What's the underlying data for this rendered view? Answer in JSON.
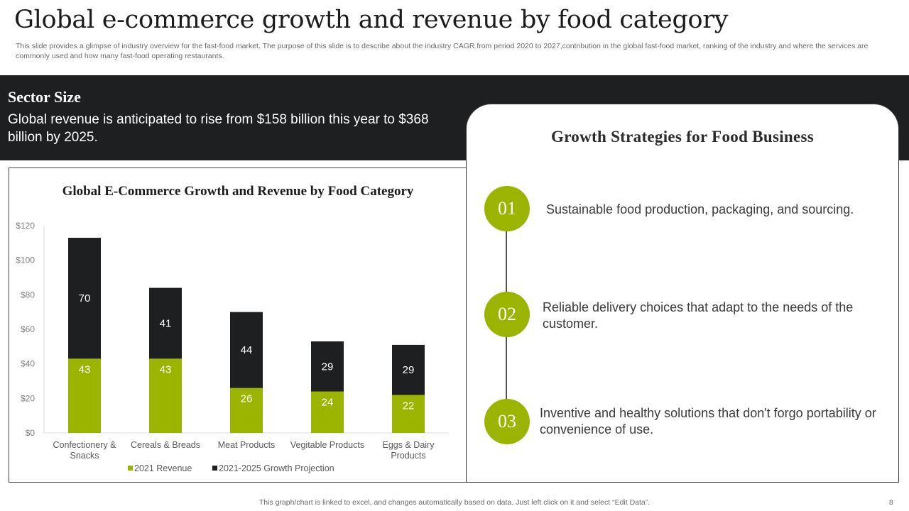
{
  "slide": {
    "title": "Global e-commerce growth and revenue by food category",
    "subtitle": "This slide provides a glimpse of industry overview for the fast-food market. The purpose of this slide is to describe about the industry CAGR from period 2020 to 2027,contribution in the global fast-food market, ranking of the industry and where the services are commonly used and how many fast-food operating restaurants.",
    "footer_note": "This graph/chart is linked to excel,  and changes automatically based on data. Just left click on it and select “Edit Data”.",
    "page_number": "8"
  },
  "sector": {
    "title": "Sector Size",
    "description": "Global revenue is anticipated to rise from $158 billion this year to $368 billion by 2025."
  },
  "strategies": {
    "title": "Growth Strategies for Food Business",
    "items": [
      {
        "number": "01",
        "text": "Sustainable food production, packaging, and sourcing."
      },
      {
        "number": "02",
        "text": "Reliable delivery choices that adapt to the needs of the customer."
      },
      {
        "number": "03",
        "text": "Inventive and healthy solutions that don't forgo portability or convenience of use."
      }
    ]
  },
  "colors": {
    "accent": "#9ab400",
    "dark": "#1e1f21"
  },
  "chart_data": {
    "type": "bar",
    "stacked": true,
    "title": "Global E-Commerce Growth and Revenue by Food Category",
    "categories": [
      [
        "Confectionery &",
        "Snacks"
      ],
      [
        "Cereals & Breads"
      ],
      [
        "Meat Products"
      ],
      [
        "Vegitable Products"
      ],
      [
        "Eggs & Dairy",
        "Products"
      ]
    ],
    "series": [
      {
        "name": "2021 Revenue",
        "color": "#9ab400",
        "label_color": "#ffffff",
        "values": [
          43,
          43,
          26,
          24,
          22
        ]
      },
      {
        "name": "2021-2025 Growth Projection",
        "color": "#1e1f21",
        "label_color": "#ffffff",
        "values": [
          70,
          41,
          44,
          29,
          29
        ]
      }
    ],
    "ylim": [
      0,
      120
    ],
    "yticks": [
      0,
      20,
      40,
      60,
      80,
      100,
      120
    ],
    "ytick_labels": [
      "$0",
      "$20",
      "$40",
      "$60",
      "$80",
      "$100",
      "$120"
    ],
    "xlabel": "",
    "ylabel": "",
    "legend_position": "bottom",
    "grid": false
  }
}
